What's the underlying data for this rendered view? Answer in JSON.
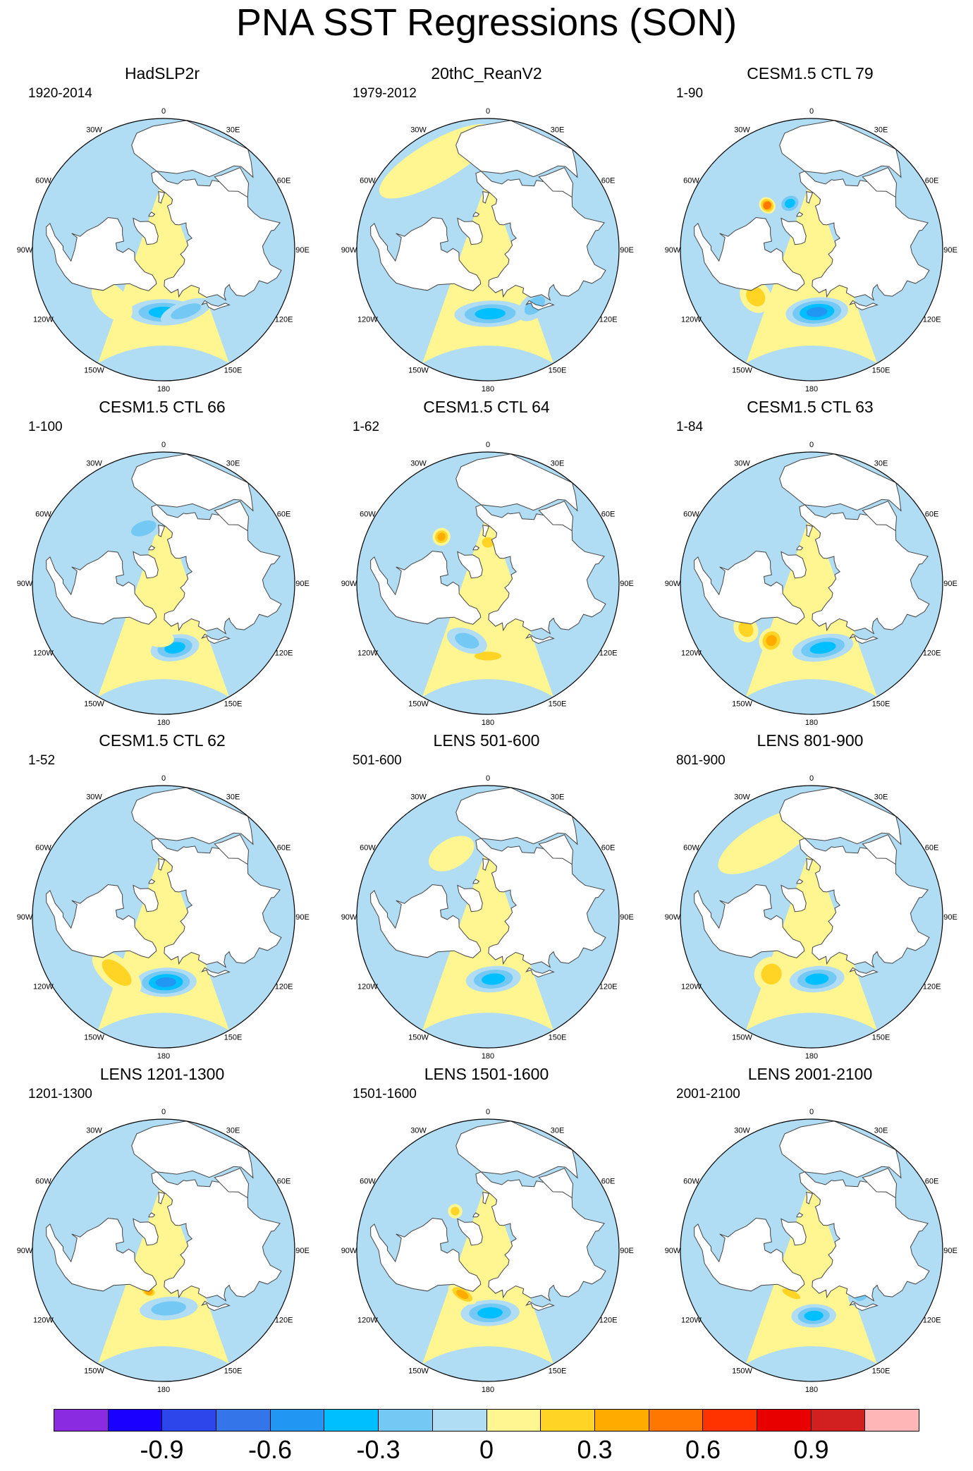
{
  "title": "PNA SST Regressions (SON)",
  "longitude_labels": [
    "180",
    "150E",
    "120E",
    "90E",
    "60E",
    "30E",
    "0",
    "30W",
    "60W",
    "90W",
    "120W",
    "150W"
  ],
  "panels": [
    {
      "title": "HadSLP2r",
      "period": "1920-2014",
      "anomalies": [
        {
          "lon": 180,
          "lat": 47,
          "dlon": 34,
          "dlat": 9,
          "value": -0.45
        },
        {
          "lon": 160,
          "lat": 45,
          "dlon": 24,
          "dlat": 7,
          "value": -0.3
        },
        {
          "lon": -135,
          "lat": 40,
          "dlon": 20,
          "dlat": 10,
          "value": 0.15
        },
        {
          "lon": -40,
          "lat": 30,
          "dlon": 35,
          "dlat": 15,
          "value": -0.1
        }
      ]
    },
    {
      "title": "20thC_ReanV2",
      "period": "1979-2012",
      "anomalies": [
        {
          "lon": 178,
          "lat": 46,
          "dlon": 34,
          "dlat": 9,
          "value": -0.4
        },
        {
          "lon": -30,
          "lat": 20,
          "dlon": 40,
          "dlat": 14,
          "value": 0.1
        },
        {
          "lon": 140,
          "lat": 40,
          "dlon": 16,
          "dlat": 8,
          "value": -0.2
        }
      ]
    },
    {
      "title": "CESM1.5 CTL 79",
      "period": "1-90",
      "anomalies": [
        {
          "lon": 175,
          "lat": 47,
          "dlon": 30,
          "dlat": 10,
          "value": -0.5
        },
        {
          "lon": -130,
          "lat": 40,
          "dlon": 14,
          "dlat": 10,
          "value": 0.3
        },
        {
          "lon": -45,
          "lat": 47,
          "dlon": 7,
          "dlat": 6,
          "value": 0.55
        },
        {
          "lon": -25,
          "lat": 55,
          "dlon": 14,
          "dlat": 7,
          "value": -0.45
        }
      ]
    },
    {
      "title": "CESM1.5 CTL 66",
      "period": "1-100",
      "anomalies": [
        {
          "lon": 170,
          "lat": 45,
          "dlon": 22,
          "dlat": 9,
          "value": -0.45
        },
        {
          "lon": -175,
          "lat": 52,
          "dlon": 16,
          "dlat": 6,
          "value": 0.15
        },
        {
          "lon": -20,
          "lat": 50,
          "dlon": 22,
          "dlat": 8,
          "value": -0.25
        }
      ]
    },
    {
      "title": "CESM1.5 CTL 64",
      "period": "1-62",
      "anomalies": [
        {
          "lon": 180,
          "lat": 40,
          "dlon": 18,
          "dlat": 5,
          "value": 0.25
        },
        {
          "lon": -160,
          "lat": 48,
          "dlon": 20,
          "dlat": 8,
          "value": -0.2
        },
        {
          "lon": -45,
          "lat": 45,
          "dlon": 8,
          "dlat": 6,
          "value": 0.4
        },
        {
          "lon": 0,
          "lat": 62,
          "dlon": 14,
          "dlat": 6,
          "value": 0.3
        }
      ]
    },
    {
      "title": "CESM1.5 CTL 63",
      "period": "1-84",
      "anomalies": [
        {
          "lon": 170,
          "lat": 45,
          "dlon": 28,
          "dlat": 9,
          "value": -0.45
        },
        {
          "lon": -145,
          "lat": 42,
          "dlon": 10,
          "dlat": 9,
          "value": 0.45
        },
        {
          "lon": -125,
          "lat": 35,
          "dlon": 10,
          "dlat": 8,
          "value": 0.25
        },
        {
          "lon": 20,
          "lat": 60,
          "dlon": 10,
          "dlat": 5,
          "value": 0.25
        }
      ]
    },
    {
      "title": "CESM1.5 CTL 62",
      "period": "1-52",
      "anomalies": [
        {
          "lon": 178,
          "lat": 45,
          "dlon": 28,
          "dlat": 10,
          "value": -0.5
        },
        {
          "lon": -140,
          "lat": 40,
          "dlon": 24,
          "dlat": 10,
          "value": 0.25
        },
        {
          "lon": -40,
          "lat": 35,
          "dlon": 30,
          "dlat": 10,
          "value": -0.15
        }
      ]
    },
    {
      "title": "LENS 501-600",
      "period": "501-600",
      "anomalies": [
        {
          "lon": 175,
          "lat": 47,
          "dlon": 26,
          "dlat": 9,
          "value": -0.35
        },
        {
          "lon": -30,
          "lat": 40,
          "dlon": 20,
          "dlat": 10,
          "value": 0.1
        },
        {
          "lon": -60,
          "lat": 25,
          "dlon": 20,
          "dlat": 10,
          "value": -0.15
        }
      ]
    },
    {
      "title": "LENS 801-900",
      "period": "801-900",
      "anomalies": [
        {
          "lon": 175,
          "lat": 47,
          "dlon": 26,
          "dlat": 9,
          "value": -0.4
        },
        {
          "lon": -145,
          "lat": 42,
          "dlon": 14,
          "dlat": 12,
          "value": 0.25
        },
        {
          "lon": -30,
          "lat": 30,
          "dlon": 40,
          "dlat": 14,
          "value": 0.1
        }
      ]
    },
    {
      "title": "LENS 1201-1300",
      "period": "1201-1300",
      "anomalies": [
        {
          "lon": 175,
          "lat": 50,
          "dlon": 30,
          "dlat": 8,
          "value": -0.2
        },
        {
          "lon": -160,
          "lat": 60,
          "dlon": 12,
          "dlat": 4,
          "value": 0.35
        },
        {
          "lon": -60,
          "lat": 30,
          "dlon": 20,
          "dlat": 10,
          "value": -0.15
        }
      ]
    },
    {
      "title": "LENS 1501-1600",
      "period": "1501-1600",
      "anomalies": [
        {
          "lon": 178,
          "lat": 47,
          "dlon": 28,
          "dlat": 9,
          "value": -0.4
        },
        {
          "lon": -150,
          "lat": 55,
          "dlon": 18,
          "dlat": 5,
          "value": 0.35
        },
        {
          "lon": -40,
          "lat": 55,
          "dlon": 8,
          "dlat": 5,
          "value": 0.25
        }
      ]
    },
    {
      "title": "LENS 2001-2100",
      "period": "2001-2100",
      "anomalies": [
        {
          "lon": 178,
          "lat": 45,
          "dlon": 20,
          "dlat": 8,
          "value": -0.4
        },
        {
          "lon": -155,
          "lat": 57,
          "dlon": 20,
          "dlat": 4,
          "value": 0.3
        },
        {
          "lon": 130,
          "lat": 45,
          "dlon": 14,
          "dlat": 8,
          "value": -0.2
        }
      ]
    }
  ],
  "colorbar": {
    "colors": [
      "#8a2be2",
      "#1a00ff",
      "#2d46ec",
      "#3575ea",
      "#2196f3",
      "#00bfff",
      "#73c8f4",
      "#b0dcf4",
      "#fff591",
      "#ffd425",
      "#ffab00",
      "#ff7600",
      "#ff3300",
      "#e80000",
      "#d21f1f",
      "#ffb6b6"
    ],
    "levels": [
      -1.05,
      -0.9,
      -0.75,
      -0.6,
      -0.45,
      -0.3,
      -0.15,
      0,
      0.15,
      0.3,
      0.45,
      0.6,
      0.75,
      0.9,
      1.05
    ],
    "labels": [
      "-0.9",
      "-0.6",
      "-0.3",
      "0",
      "0.3",
      "0.6",
      "0.9"
    ],
    "label_positions": [
      1,
      3,
      5,
      7,
      9,
      11,
      13
    ]
  }
}
